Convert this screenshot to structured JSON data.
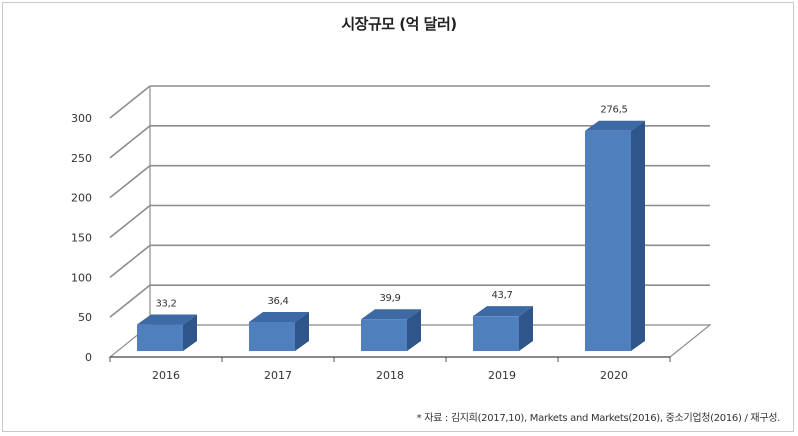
{
  "chart_data": {
    "type": "bar",
    "title": "시장규모 (억 달러)",
    "categories": [
      "2016",
      "2017",
      "2018",
      "2019",
      "2020"
    ],
    "values": [
      33.2,
      36.4,
      39.9,
      43.7,
      276.5
    ],
    "value_labels": [
      "33,2",
      "36,4",
      "39,9",
      "43,7",
      "276,5"
    ],
    "y_ticks": [
      "0",
      "50",
      "100",
      "150",
      "200",
      "250",
      "300"
    ],
    "ylim": [
      0,
      300
    ],
    "xlabel": "",
    "ylabel": "",
    "grid": true,
    "legend": "none",
    "style": "3d-column",
    "colors": {
      "bar_front": "#4f7fbd",
      "bar_side": "#2f5689",
      "bar_top": "#3d6aa5",
      "grid": "#8c8c8c"
    }
  },
  "source_note": "* 자료 : 김지희(2017,10), Markets and Markets(2016), 중소기업청(2016) / 재구성."
}
